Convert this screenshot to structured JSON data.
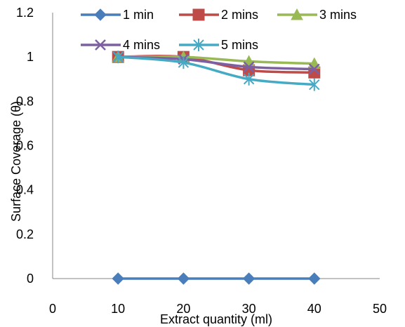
{
  "chart_data": {
    "type": "line",
    "title": "",
    "xlabel": "Extract quantity (ml)",
    "ylabel": "Surface Coverage (θ)",
    "xlim": [
      0,
      50
    ],
    "ylim": [
      0,
      1.2
    ],
    "x_ticks": [
      0,
      10,
      20,
      30,
      40,
      50
    ],
    "y_ticks": [
      0,
      0.2,
      0.4,
      0.6,
      0.8,
      1,
      1.2
    ],
    "x_tick_labels": [
      "0",
      "10",
      "20",
      "30",
      "40",
      "50"
    ],
    "y_tick_labels": [
      "0",
      "0.2",
      "0.4",
      "0.6",
      "0.8",
      "1",
      "1.2"
    ],
    "grid": false,
    "legend_position": "top",
    "x": [
      10,
      20,
      30,
      40
    ],
    "series": [
      {
        "name": "1 min",
        "color": "#4a7ebb",
        "marker": "diamond",
        "values": [
          0,
          0,
          0,
          0
        ]
      },
      {
        "name": "2 mins",
        "color": "#be4b48",
        "marker": "square",
        "values": [
          1.0,
          1.0,
          0.94,
          0.93
        ]
      },
      {
        "name": "3 mins",
        "color": "#98b954",
        "marker": "triangle",
        "values": [
          1.0,
          1.0,
          0.98,
          0.97
        ]
      },
      {
        "name": "4 mins",
        "color": "#7d60a0",
        "marker": "x",
        "values": [
          1.0,
          0.99,
          0.955,
          0.945
        ]
      },
      {
        "name": "5 mins",
        "color": "#46aac5",
        "marker": "star",
        "values": [
          1.0,
          0.975,
          0.9,
          0.875
        ]
      }
    ]
  }
}
